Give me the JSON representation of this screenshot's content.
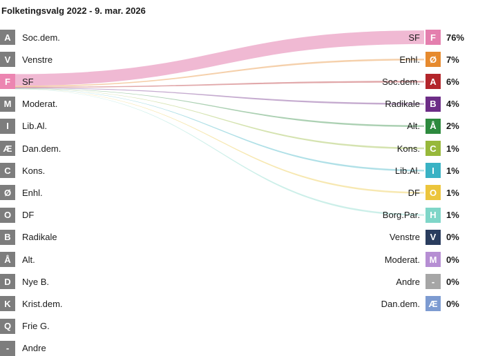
{
  "colors": {
    "grey": "#7d7d7d",
    "highlight": "#ec85b1"
  },
  "chart_data": {
    "type": "sankey",
    "title": "Folketingsvalg 2022 - 9. mar. 2026",
    "source_party": "F",
    "left": [
      {
        "code": "A",
        "name": "Soc.dem."
      },
      {
        "code": "V",
        "name": "Venstre"
      },
      {
        "code": "F",
        "name": "SF"
      },
      {
        "code": "M",
        "name": "Moderat."
      },
      {
        "code": "I",
        "name": "Lib.Al."
      },
      {
        "code": "Æ",
        "name": "Dan.dem."
      },
      {
        "code": "C",
        "name": "Kons."
      },
      {
        "code": "Ø",
        "name": "Enhl."
      },
      {
        "code": "O",
        "name": "DF"
      },
      {
        "code": "B",
        "name": "Radikale"
      },
      {
        "code": "Å",
        "name": "Alt."
      },
      {
        "code": "D",
        "name": "Nye B."
      },
      {
        "code": "K",
        "name": "Krist.dem."
      },
      {
        "code": "Q",
        "name": "Frie G."
      },
      {
        "code": "-",
        "name": "Andre"
      }
    ],
    "right": [
      {
        "code": "F",
        "name": "SF",
        "pct_label": "76%",
        "value": 76,
        "color": "#e47fae"
      },
      {
        "code": "Ø",
        "name": "Enhl.",
        "pct_label": "7%",
        "value": 7,
        "color": "#e68a2e"
      },
      {
        "code": "A",
        "name": "Soc.dem.",
        "pct_label": "6%",
        "value": 6,
        "color": "#b3252b"
      },
      {
        "code": "B",
        "name": "Radikale",
        "pct_label": "4%",
        "value": 4,
        "color": "#6d2d87"
      },
      {
        "code": "Å",
        "name": "Alt.",
        "pct_label": "2%",
        "value": 2,
        "color": "#2d8a3e"
      },
      {
        "code": "C",
        "name": "Kons.",
        "pct_label": "1%",
        "value": 1,
        "color": "#97b83a"
      },
      {
        "code": "I",
        "name": "Lib.Al.",
        "pct_label": "1%",
        "value": 1,
        "color": "#39b2c4"
      },
      {
        "code": "O",
        "name": "DF",
        "pct_label": "1%",
        "value": 1,
        "color": "#ecc53c"
      },
      {
        "code": "H",
        "name": "Borg.Par.",
        "pct_label": "1%",
        "value": 1,
        "color": "#7fd6c8"
      },
      {
        "code": "V",
        "name": "Venstre",
        "pct_label": "0%",
        "value": 0,
        "color": "#2a3d5e"
      },
      {
        "code": "M",
        "name": "Moderat.",
        "pct_label": "0%",
        "value": 0,
        "color": "#b68ed3"
      },
      {
        "code": "-",
        "name": "Andre",
        "pct_label": "0%",
        "value": 0,
        "color": "#a6a6a6"
      },
      {
        "code": "Æ",
        "name": "Dan.dem.",
        "pct_label": "0%",
        "value": 0,
        "color": "#7d9bd1"
      }
    ]
  }
}
